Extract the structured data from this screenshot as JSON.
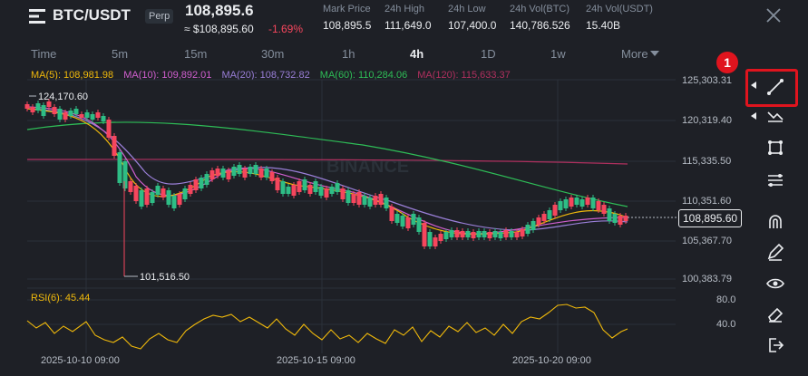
{
  "header": {
    "pair": "BTC/USDT",
    "badge": "Perp",
    "last_price": "108,895.6",
    "usd_price": "≈ $108,895.60",
    "change": "-1.69%",
    "stats": [
      {
        "label": "Mark Price",
        "value": "108,895.5"
      },
      {
        "label": "24h High",
        "value": "111,649.0"
      },
      {
        "label": "24h Low",
        "value": "107,400.0"
      },
      {
        "label": "24h Vol(BTC)",
        "value": "140,786.526"
      },
      {
        "label": "24h Vol(USDT)",
        "value": "15.40B"
      }
    ]
  },
  "timeframes": [
    "Time",
    "5m",
    "15m",
    "30m",
    "1h",
    "4h",
    "1D",
    "1w",
    "More"
  ],
  "active_timeframe": "4h",
  "moving_averages": [
    {
      "label": "MA(5): 108,981.98",
      "color": "#f0b90b"
    },
    {
      "label": "MA(10): 109,892.01",
      "color": "#d05fcf"
    },
    {
      "label": "MA(20): 108,732.82",
      "color": "#9a7fd8"
    },
    {
      "label": "MA(60): 110,284.06",
      "color": "#2ebd57"
    },
    {
      "label": "MA(120): 115,633.37",
      "color": "#b0305f"
    }
  ],
  "price_axis": [
    "125,303.31",
    "120,319.40",
    "115,335.50",
    "110,351.60",
    "105,367.70",
    "100,383.79"
  ],
  "current_price": "108,895.60",
  "high_marker": "124,170.60",
  "low_marker": "101,516.50",
  "watermark": "BINANCE",
  "rsi": {
    "label": "RSI(6): 45.44",
    "levels": [
      "80.0",
      "40.0"
    ]
  },
  "dates": [
    "2025-10-10 09:00",
    "2025-10-15 09:00",
    "2025-10-20 09:00"
  ],
  "annotation_number": "1",
  "tools": [
    "trend-line-icon",
    "multi-line-icon",
    "rectangle-icon",
    "fib-icon",
    "magnet-icon",
    "pencil-icon",
    "eye-icon",
    "eraser-icon",
    "exit-icon"
  ]
}
